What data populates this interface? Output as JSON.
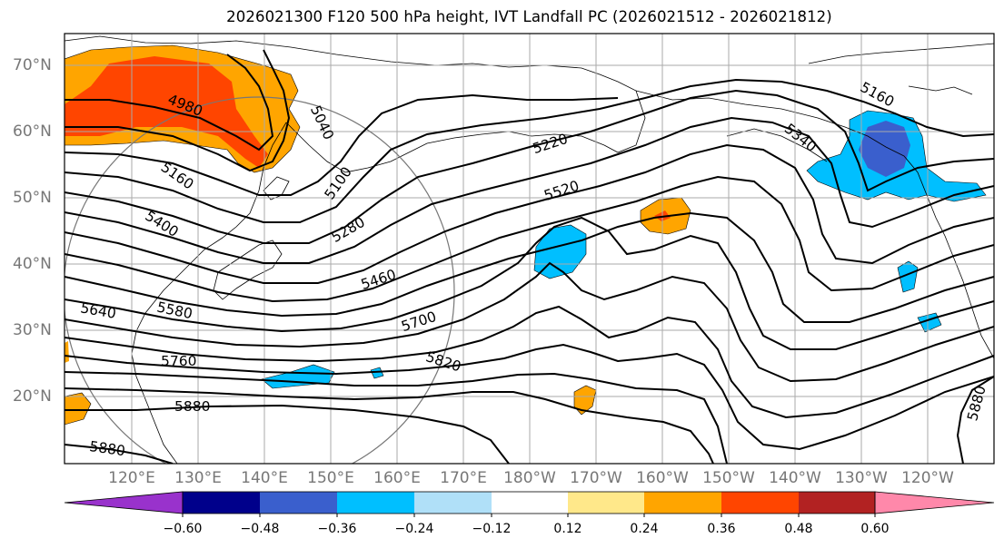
{
  "title": "2026021300 F120 500 hPa height, IVT Landfall PC (2026021512 - 2026021812)",
  "lat_labels": [
    "70°N",
    "60°N",
    "50°N",
    "40°N",
    "30°N",
    "20°N"
  ],
  "lon_labels": [
    "120°E",
    "130°E",
    "140°E",
    "150°E",
    "160°E",
    "170°E",
    "180°W",
    "170°W",
    "160°W",
    "150°W",
    "140°W",
    "130°W",
    "120°W"
  ],
  "colorbar": {
    "ticks": [
      "−0.60",
      "−0.48",
      "−0.36",
      "−0.24",
      "−0.12",
      "0.12",
      "0.24",
      "0.36",
      "0.48",
      "0.60"
    ],
    "colors": [
      "#9932cc",
      "#00008b",
      "#3a5fcd",
      "#00bfff",
      "#b0e0f8",
      "#ffffff",
      "#ffe88a",
      "#ffa500",
      "#ff4500",
      "#b22222",
      "#ff88aa"
    ]
  },
  "contour_labels": [
    "4980",
    "5040",
    "5100",
    "5160",
    "5160",
    "5220",
    "5280",
    "5340",
    "5400",
    "5460",
    "5520",
    "5580",
    "5640",
    "5700",
    "5760",
    "5820",
    "5880",
    "5880",
    "5880"
  ]
}
